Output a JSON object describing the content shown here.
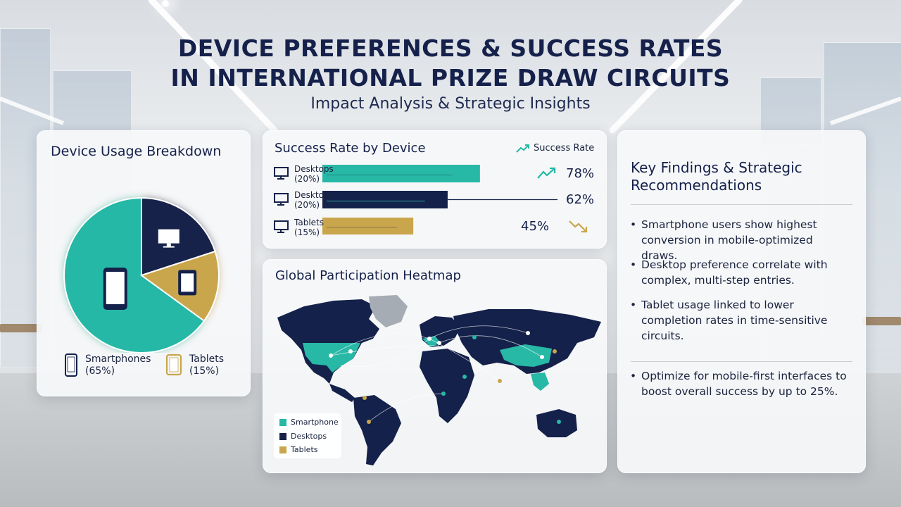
{
  "header": {
    "title_line1": "DEVICE PREFERENCES & SUCCESS RATES",
    "title_line2": "IN INTERNATIONAL PRIZE DRAW CIRCUITS",
    "subtitle": "Impact Analysis & Strategic Insights"
  },
  "colors": {
    "teal": "#27b8a6",
    "navy": "#14214a",
    "gold": "#c9a64b",
    "text": "#15214b"
  },
  "usage": {
    "title": "Device Usage Breakdown",
    "legend": [
      {
        "label": "Smartphones",
        "pct": "(65%)",
        "icon": "smartphone-icon"
      },
      {
        "label": "Tablets",
        "pct": "(15%)",
        "icon": "tablet-icon"
      }
    ]
  },
  "success": {
    "title": "Success Rate by Device",
    "legend_label": "Success Rate",
    "rows": [
      {
        "name": "Desktops",
        "pct": "(20%)",
        "value_text": "78%",
        "trend": "up",
        "icon": "desktop-icon"
      },
      {
        "name": "Desktops",
        "pct": "(20%)",
        "value_text": "62%",
        "trend": "none",
        "icon": "desktop-icon"
      },
      {
        "name": "Tablets",
        "pct": "(15%)",
        "value_text": "45%",
        "trend": "down",
        "icon": "desktop-icon"
      }
    ]
  },
  "heatmap": {
    "title": "Global Participation Heatmap",
    "legend": [
      "Smartphone",
      "Desktops",
      "Tablets"
    ]
  },
  "findings": {
    "title_line1": "Key Findings & Strategic",
    "title_line2": "Recommendations",
    "items": [
      "Smartphone users show highest conversion in mobile-optimized draws.",
      "Desktop preference correlate with complex, multi-step entries.",
      "Tablet usage linked to lower completion rates in time-sensitive circuits.",
      "Optimize for mobile-first interfaces to boost overall success by up to 25%."
    ]
  },
  "chart_data": [
    {
      "type": "pie",
      "title": "Device Usage Breakdown",
      "categories": [
        "Smartphones",
        "Desktops",
        "Tablets"
      ],
      "values": [
        65,
        20,
        15
      ],
      "colors": [
        "#27b8a6",
        "#14214a",
        "#c9a64b"
      ]
    },
    {
      "type": "bar",
      "orientation": "horizontal",
      "title": "Success Rate by Device",
      "categories": [
        "Desktops (20%)",
        "Desktops (20%)",
        "Tablets (15%)"
      ],
      "values": [
        78,
        62,
        45
      ],
      "colors": [
        "#27b8a6",
        "#14214a",
        "#c9a64b"
      ],
      "xlim": [
        0,
        100
      ],
      "legend": "top-right"
    }
  ]
}
